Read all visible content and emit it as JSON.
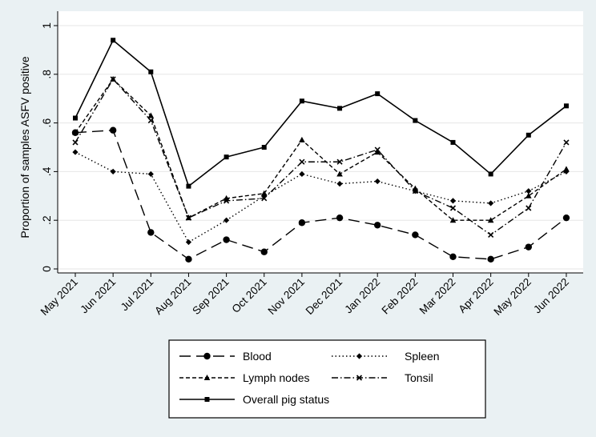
{
  "chart_data": {
    "type": "line",
    "ylabel": "Proportion of samples ASFV positive",
    "xlabel": "",
    "ylim": [
      0,
      1
    ],
    "yticks": [
      0,
      0.2,
      0.4,
      0.6,
      0.8,
      1
    ],
    "ytick_labels": [
      "0",
      ".2",
      ".4",
      ".6",
      ".8",
      "1"
    ],
    "grid": true,
    "legend_placement": "bottom",
    "categories": [
      "May 2021",
      "Jun 2021",
      "Jul 2021",
      "Aug 2021",
      "Sep 2021",
      "Oct 2021",
      "Nov 2021",
      "Dec 2021",
      "Jan 2022",
      "Feb 2022",
      "Mar 2022",
      "Apr 2022",
      "May 2022",
      "Jun 2022"
    ],
    "series": [
      {
        "name": "Blood",
        "line": "longdash",
        "marker": "circle",
        "values": [
          0.56,
          0.57,
          0.15,
          0.04,
          0.12,
          0.07,
          0.19,
          0.21,
          0.18,
          0.14,
          0.05,
          0.04,
          0.09,
          0.21
        ]
      },
      {
        "name": "Spleen",
        "line": "dot",
        "marker": "diamond",
        "values": [
          0.48,
          0.4,
          0.39,
          0.11,
          0.2,
          0.3,
          0.39,
          0.35,
          0.36,
          0.32,
          0.28,
          0.27,
          0.32,
          0.4
        ]
      },
      {
        "name": "Lymph nodes",
        "line": "shortdash",
        "marker": "triangle",
        "values": [
          0.56,
          0.78,
          0.63,
          0.21,
          0.29,
          0.31,
          0.53,
          0.39,
          0.48,
          0.33,
          0.2,
          0.2,
          0.3,
          0.41
        ]
      },
      {
        "name": "Tonsil",
        "line": "dashdot",
        "marker": "x",
        "values": [
          0.52,
          0.78,
          0.61,
          0.21,
          0.28,
          0.29,
          0.44,
          0.44,
          0.49,
          0.32,
          0.25,
          0.14,
          0.25,
          0.52
        ]
      },
      {
        "name": "Overall pig status",
        "line": "solid",
        "marker": "square",
        "values": [
          0.62,
          0.94,
          0.81,
          0.34,
          0.46,
          0.5,
          0.69,
          0.66,
          0.72,
          0.61,
          0.52,
          0.39,
          0.55,
          0.67
        ]
      }
    ]
  }
}
